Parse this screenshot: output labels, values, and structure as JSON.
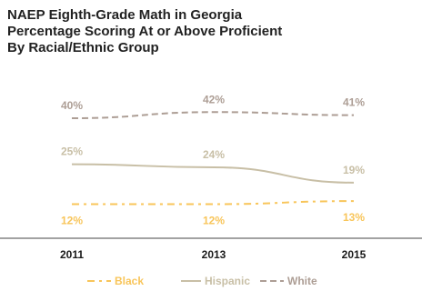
{
  "chart_data": {
    "type": "line",
    "title_lines": [
      "NAEP Eighth-Grade Math in Georgia",
      "Percentage Scoring At or Above Proficient",
      "By Racial/Ethnic Group"
    ],
    "categories": [
      "2011",
      "2013",
      "2015"
    ],
    "series": [
      {
        "name": "Black",
        "values": [
          12,
          12,
          13
        ],
        "labels": [
          "12%",
          "12%",
          "13%"
        ],
        "color": "#F8C55A",
        "dash": "dash-dot"
      },
      {
        "name": "Hispanic",
        "values": [
          25,
          24,
          19
        ],
        "labels": [
          "25%",
          "24%",
          "19%"
        ],
        "color": "#C8BFA6",
        "dash": "solid"
      },
      {
        "name": "White",
        "values": [
          40,
          42,
          41
        ],
        "labels": [
          "40%",
          "42%",
          "41%"
        ],
        "color": "#AD9E95",
        "dash": "dashed"
      }
    ],
    "legend": {
      "position": "bottom",
      "items": [
        {
          "symbol": "- ·",
          "text": "Black"
        },
        {
          "symbol": "—",
          "text": "Hispanic"
        },
        {
          "symbol": "- - -",
          "text": "White"
        }
      ]
    },
    "grid": false
  }
}
